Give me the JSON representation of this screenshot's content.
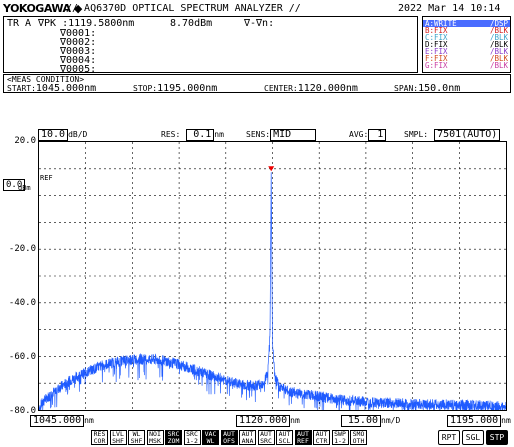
{
  "header": {
    "brand": "YOKOGAWA",
    "brand_mark": "◆",
    "title": "// AQ6370D OPTICAL SPECTRUM ANALYZER //",
    "datetime": "2022 Mar 14 10:14"
  },
  "markers": {
    "line1_prefix": "TR A",
    "line1_label": "∇PK  :1119.5800nm",
    "line1_level": "8.70dBm",
    "line1_delta": "∇-∇n:",
    "rows": [
      "∇0001:",
      "∇0002:",
      "∇0003:",
      "∇0004:",
      "∇0005:"
    ]
  },
  "traces": [
    {
      "name": "A:WRITE",
      "state": "/DSP",
      "color": "#4a6cff",
      "highlight": true
    },
    {
      "name": "B:FIX",
      "state": "/BLK",
      "color": "#d21b1b"
    },
    {
      "name": "C:FIX",
      "state": "/BLK",
      "color": "#3ba3c9"
    },
    {
      "name": "D:FIX",
      "state": "/BLK",
      "color": "#000000"
    },
    {
      "name": "E:FIX",
      "state": "/BLK",
      "color": "#8a3cc9"
    },
    {
      "name": "F:FIX",
      "state": "/BLK",
      "color": "#d24a1b"
    },
    {
      "name": "G:FIX",
      "state": "/BLK",
      "color": "#c93ca3"
    }
  ],
  "meas": {
    "header": "<MEAS CONDITION>",
    "start_label": "START:",
    "start_value": "1045.000nm",
    "stop_label": "STOP:",
    "stop_value": "1195.000nm",
    "center_label": "CENTER:",
    "center_value": "1120.000nm",
    "span_label": "SPAN:",
    "span_value": "150.0nm"
  },
  "settings": {
    "scale_value": "10.0",
    "scale_unit": "dB/D",
    "res_label": "RES:",
    "res_value": "0.1",
    "res_unit": "nm",
    "sens_label": "SENS:",
    "sens_value": "MID",
    "avg_label": "AVG:",
    "avg_value": "1",
    "smpl_label": "SMPL:",
    "smpl_value": "7501(AUTO)"
  },
  "ref": {
    "value": "0.0",
    "unit": "dBm",
    "label": "REF"
  },
  "chart_data": {
    "type": "line",
    "title": "",
    "xlabel": "",
    "ylabel": "",
    "xlim": [
      1045,
      1195
    ],
    "ylim": [
      -80,
      20
    ],
    "y_ticks": [
      "20.0",
      "0.0",
      "-20.0",
      "-40.0",
      "-60.0",
      "-80.0"
    ],
    "y_tick_values": [
      20,
      0,
      -20,
      -40,
      -60,
      -80
    ],
    "grid": true,
    "series": [
      {
        "color": "#1f5bff",
        "x": [
          1045,
          1047,
          1050,
          1055,
          1060,
          1065,
          1070,
          1075,
          1080,
          1085,
          1090,
          1095,
          1100,
          1105,
          1110,
          1114,
          1117,
          1118.5,
          1119.2,
          1119.58,
          1120,
          1120.8,
          1122,
          1125,
          1130,
          1140,
          1150,
          1160,
          1170,
          1180,
          1190,
          1195
        ],
        "y": [
          -79,
          -76,
          -73,
          -69,
          -66,
          -63.5,
          -62,
          -61.2,
          -61,
          -61.5,
          -63,
          -65,
          -67,
          -69,
          -70.5,
          -71,
          -70,
          -66,
          -52,
          8.7,
          -55,
          -68,
          -71,
          -73,
          -74,
          -76,
          -77,
          -77.5,
          -78,
          -78,
          -78.5,
          -79
        ]
      }
    ],
    "peak": {
      "x": 1119.58,
      "y": 8.7
    }
  },
  "xaxis": {
    "start": "1045.000",
    "center": "1120.000",
    "span_div": "15.00",
    "span_unit": "nm/D",
    "stop": "1195.000",
    "unit": "nm"
  },
  "softkeys": [
    {
      "l1": "RES",
      "l2": "COR",
      "on": false
    },
    {
      "l1": "LVL",
      "l2": "SHF",
      "on": false
    },
    {
      "l1": "WL",
      "l2": "SHF",
      "on": false
    },
    {
      "l1": "NOI",
      "l2": "MSK",
      "on": false
    },
    {
      "l1": "SRC",
      "l2": "ZOM",
      "on": true
    },
    {
      "l1": "SRC",
      "l2": "1-2",
      "on": false
    },
    {
      "l1": "VAC",
      "l2": "WL",
      "on": true
    },
    {
      "l1": "AUT",
      "l2": "OFS",
      "on": true
    },
    {
      "l1": "AUT",
      "l2": "ANA",
      "on": false
    },
    {
      "l1": "AUT",
      "l2": "SRC",
      "on": false
    },
    {
      "l1": "AUT",
      "l2": "SCL",
      "on": false
    },
    {
      "l1": "AUT",
      "l2": "REF",
      "on": true
    },
    {
      "l1": "AUT",
      "l2": "CTR",
      "on": false
    },
    {
      "l1": "SWP",
      "l2": "1-2",
      "on": false
    },
    {
      "l1": "SMO",
      "l2": "OTH",
      "on": false
    }
  ],
  "sweep_buttons": [
    {
      "label": "RPT",
      "on": false
    },
    {
      "label": "SGL",
      "on": false
    },
    {
      "label": "STP",
      "on": true
    }
  ]
}
